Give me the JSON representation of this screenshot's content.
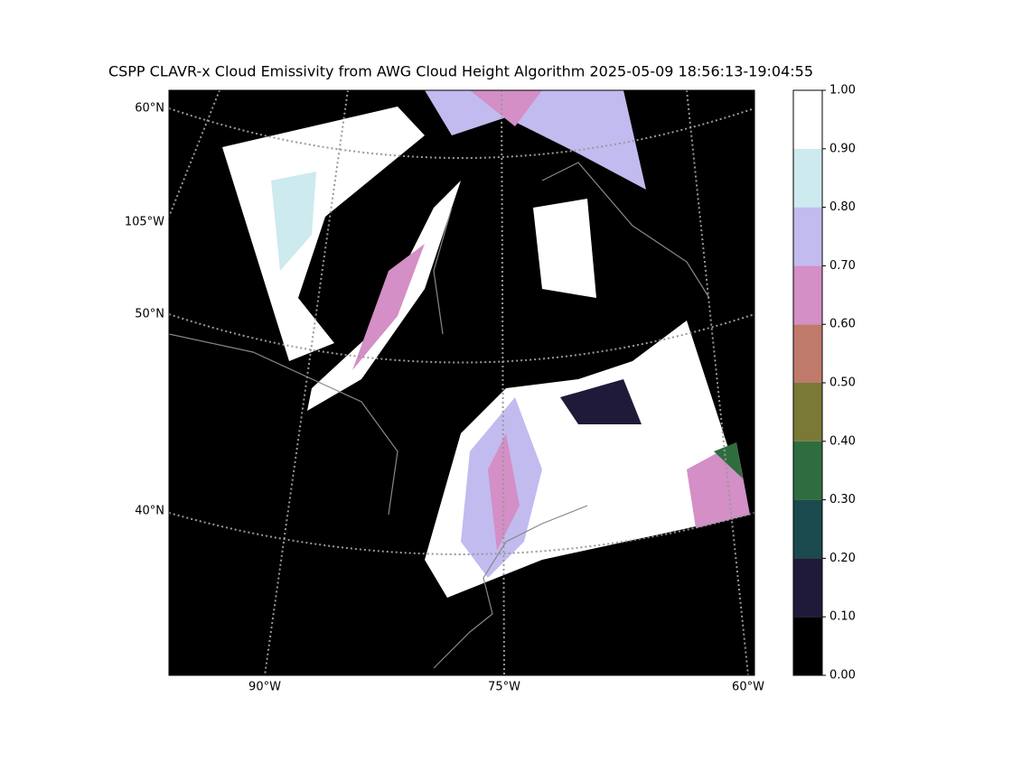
{
  "title": "CSPP CLAVR-x Cloud Emissivity from AWG Cloud Height Algorithm 2025-05-09 18:56:13-19:04:55",
  "map": {
    "lat_labels": [
      "60°N",
      "105°W",
      "50°N",
      "40°N"
    ],
    "lon_labels": [
      "90°W",
      "75°W",
      "60°W"
    ]
  },
  "colorbar": {
    "ticks": [
      {
        "value": 0,
        "label": "0.00"
      },
      {
        "value": 0.1,
        "label": "0.10"
      },
      {
        "value": 0.2,
        "label": "0.20"
      },
      {
        "value": 0.3,
        "label": "0.30"
      },
      {
        "value": 0.4,
        "label": "0.40"
      },
      {
        "value": 0.5,
        "label": "0.50"
      },
      {
        "value": 0.6,
        "label": "0.60"
      },
      {
        "value": 0.7,
        "label": "0.70"
      },
      {
        "value": 0.8,
        "label": "0.80"
      },
      {
        "value": 0.9,
        "label": "0.90"
      },
      {
        "value": 1,
        "label": "1.00"
      }
    ],
    "colors": [
      "#000000",
      "#1f1a3a",
      "#1a4a4e",
      "#2e6e3e",
      "#7a7a36",
      "#c07a6c",
      "#d38fc6",
      "#c2bbef",
      "#cdeaee",
      "#ffffff"
    ]
  }
}
